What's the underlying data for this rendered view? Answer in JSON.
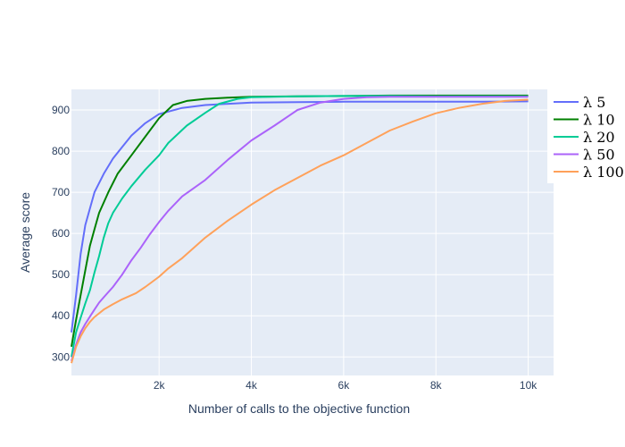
{
  "chart_data": {
    "type": "line",
    "title": "",
    "xlabel": "Number of calls to the objective function",
    "ylabel": "Average score",
    "xlim": [
      100,
      10550
    ],
    "ylim": [
      255,
      950
    ],
    "x_ticks": [
      2000,
      4000,
      6000,
      8000,
      10000
    ],
    "x_tick_labels": [
      "2k",
      "4k",
      "6k",
      "8k",
      "10k"
    ],
    "y_ticks": [
      300,
      400,
      500,
      600,
      700,
      800,
      900
    ],
    "y_tick_labels": [
      "300",
      "400",
      "500",
      "600",
      "700",
      "800",
      "900"
    ],
    "grid": true,
    "legend_position": "top-right",
    "plot_background": "#e5ecf6",
    "series": [
      {
        "name": "λ 5",
        "color": "#636efa",
        "points": [
          [
            100,
            360
          ],
          [
            200,
            450
          ],
          [
            300,
            550
          ],
          [
            400,
            620
          ],
          [
            600,
            700
          ],
          [
            800,
            745
          ],
          [
            1000,
            782
          ],
          [
            1200,
            810
          ],
          [
            1400,
            838
          ],
          [
            1700,
            868
          ],
          [
            2000,
            890
          ],
          [
            2500,
            905
          ],
          [
            3000,
            912
          ],
          [
            3500,
            915
          ],
          [
            4000,
            918
          ],
          [
            5000,
            919
          ],
          [
            6000,
            920
          ],
          [
            7000,
            920
          ],
          [
            8000,
            920
          ],
          [
            9000,
            920
          ],
          [
            10000,
            921
          ]
        ]
      },
      {
        "name": "λ 10",
        "color": "#008000",
        "points": [
          [
            100,
            325
          ],
          [
            200,
            390
          ],
          [
            300,
            450
          ],
          [
            400,
            510
          ],
          [
            500,
            570
          ],
          [
            600,
            610
          ],
          [
            700,
            650
          ],
          [
            900,
            700
          ],
          [
            1100,
            745
          ],
          [
            1400,
            790
          ],
          [
            1700,
            835
          ],
          [
            2000,
            880
          ],
          [
            2300,
            912
          ],
          [
            2600,
            922
          ],
          [
            3000,
            927
          ],
          [
            3500,
            930
          ],
          [
            4000,
            932
          ],
          [
            5000,
            933
          ],
          [
            6000,
            934
          ],
          [
            7000,
            935
          ],
          [
            8000,
            935
          ],
          [
            9000,
            935
          ],
          [
            10000,
            935
          ]
        ]
      },
      {
        "name": "λ 20",
        "color": "#00cc96",
        "points": [
          [
            100,
            300
          ],
          [
            200,
            360
          ],
          [
            300,
            395
          ],
          [
            400,
            430
          ],
          [
            500,
            462
          ],
          [
            600,
            505
          ],
          [
            700,
            545
          ],
          [
            800,
            590
          ],
          [
            900,
            625
          ],
          [
            1000,
            650
          ],
          [
            1200,
            685
          ],
          [
            1400,
            715
          ],
          [
            1700,
            755
          ],
          [
            2000,
            790
          ],
          [
            2200,
            820
          ],
          [
            2600,
            862
          ],
          [
            3000,
            893
          ],
          [
            3300,
            915
          ],
          [
            3700,
            927
          ],
          [
            4000,
            931
          ],
          [
            5000,
            933
          ],
          [
            6000,
            934
          ],
          [
            7000,
            934
          ],
          [
            8000,
            933
          ],
          [
            9000,
            933
          ],
          [
            10000,
            933
          ]
        ]
      },
      {
        "name": "λ 50",
        "color": "#ab63fa",
        "points": [
          [
            100,
            290
          ],
          [
            200,
            330
          ],
          [
            300,
            360
          ],
          [
            400,
            380
          ],
          [
            500,
            398
          ],
          [
            600,
            415
          ],
          [
            700,
            432
          ],
          [
            800,
            445
          ],
          [
            1000,
            470
          ],
          [
            1200,
            500
          ],
          [
            1400,
            535
          ],
          [
            1600,
            565
          ],
          [
            1800,
            598
          ],
          [
            2000,
            628
          ],
          [
            2200,
            655
          ],
          [
            2500,
            690
          ],
          [
            3000,
            730
          ],
          [
            3500,
            780
          ],
          [
            4000,
            826
          ],
          [
            4500,
            862
          ],
          [
            5000,
            900
          ],
          [
            5500,
            918
          ],
          [
            6000,
            927
          ],
          [
            6500,
            931
          ],
          [
            7000,
            932
          ],
          [
            8000,
            932
          ],
          [
            9000,
            932
          ],
          [
            10000,
            932
          ]
        ]
      },
      {
        "name": "λ 100",
        "color": "#ffa15a",
        "points": [
          [
            100,
            285
          ],
          [
            200,
            325
          ],
          [
            300,
            350
          ],
          [
            400,
            370
          ],
          [
            500,
            385
          ],
          [
            600,
            397
          ],
          [
            800,
            415
          ],
          [
            1000,
            428
          ],
          [
            1200,
            440
          ],
          [
            1500,
            455
          ],
          [
            1700,
            470
          ],
          [
            2000,
            495
          ],
          [
            2200,
            515
          ],
          [
            2500,
            540
          ],
          [
            2800,
            570
          ],
          [
            3000,
            590
          ],
          [
            3500,
            632
          ],
          [
            4000,
            670
          ],
          [
            4500,
            705
          ],
          [
            5000,
            735
          ],
          [
            5500,
            765
          ],
          [
            6000,
            790
          ],
          [
            6500,
            820
          ],
          [
            7000,
            850
          ],
          [
            7500,
            872
          ],
          [
            8000,
            892
          ],
          [
            8500,
            905
          ],
          [
            9000,
            915
          ],
          [
            9500,
            922
          ],
          [
            10000,
            925
          ]
        ]
      }
    ]
  }
}
